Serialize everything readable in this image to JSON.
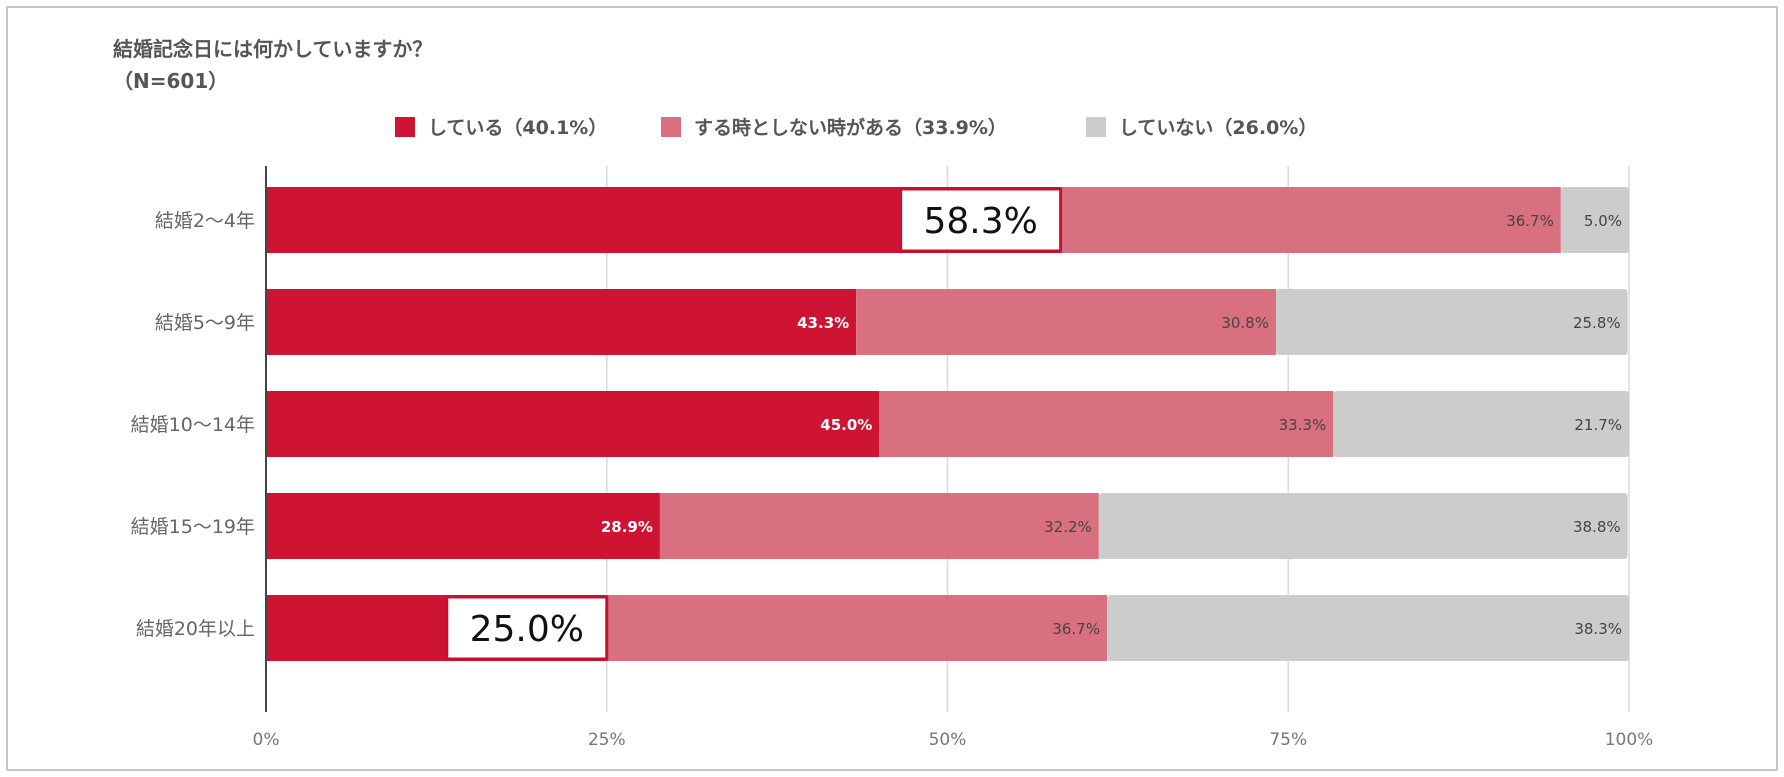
{
  "chart_data": {
    "type": "bar",
    "orientation": "horizontal",
    "stacked": true,
    "title": "結婚記念日には何かしていますか？",
    "subtitle": "（N=601）",
    "categories": [
      "結婚2～4年",
      "結婚5～9年",
      "結婚10～14年",
      "結婚15～19年",
      "結婚20年以上"
    ],
    "series": [
      {
        "name": "している",
        "legend": "している（40.1%）",
        "color": "#ce1432",
        "label_color": "#ffffff",
        "label_bold": true,
        "values": [
          58.3,
          43.3,
          45.0,
          28.9,
          25.0
        ],
        "labels": [
          "58.3%",
          "43.3%",
          "45.0%",
          "28.9%",
          "25.0%"
        ]
      },
      {
        "name": "する時としない時がある",
        "legend": "する時としない時がある（33.9%）",
        "color": "#d9707f",
        "label_color": "#444444",
        "label_bold": false,
        "values": [
          36.7,
          30.8,
          33.3,
          32.2,
          36.7
        ],
        "labels": [
          "36.7%",
          "30.8%",
          "33.3%",
          "32.2%",
          "36.7%"
        ]
      },
      {
        "name": "していない",
        "legend": "していない（26.0%）",
        "color": "#cccccc",
        "label_color": "#444444",
        "label_bold": false,
        "values": [
          5.0,
          25.8,
          21.7,
          38.8,
          38.3
        ],
        "labels": [
          "5.0%",
          "25.8%",
          "21.7%",
          "38.8%",
          "38.3%"
        ]
      }
    ],
    "xlim": [
      0,
      100
    ],
    "xticks": [
      0,
      25,
      50,
      75,
      100
    ],
    "xtick_labels": [
      "0%",
      "25%",
      "50%",
      "75%",
      "100%"
    ],
    "grid": true,
    "legend_position": "top-center",
    "callouts": [
      {
        "category_index": 0,
        "series_index": 0,
        "text": "58.3%"
      },
      {
        "category_index": 4,
        "series_index": 0,
        "text": "25.0%"
      }
    ],
    "callout_border_color": "#c8102e"
  }
}
